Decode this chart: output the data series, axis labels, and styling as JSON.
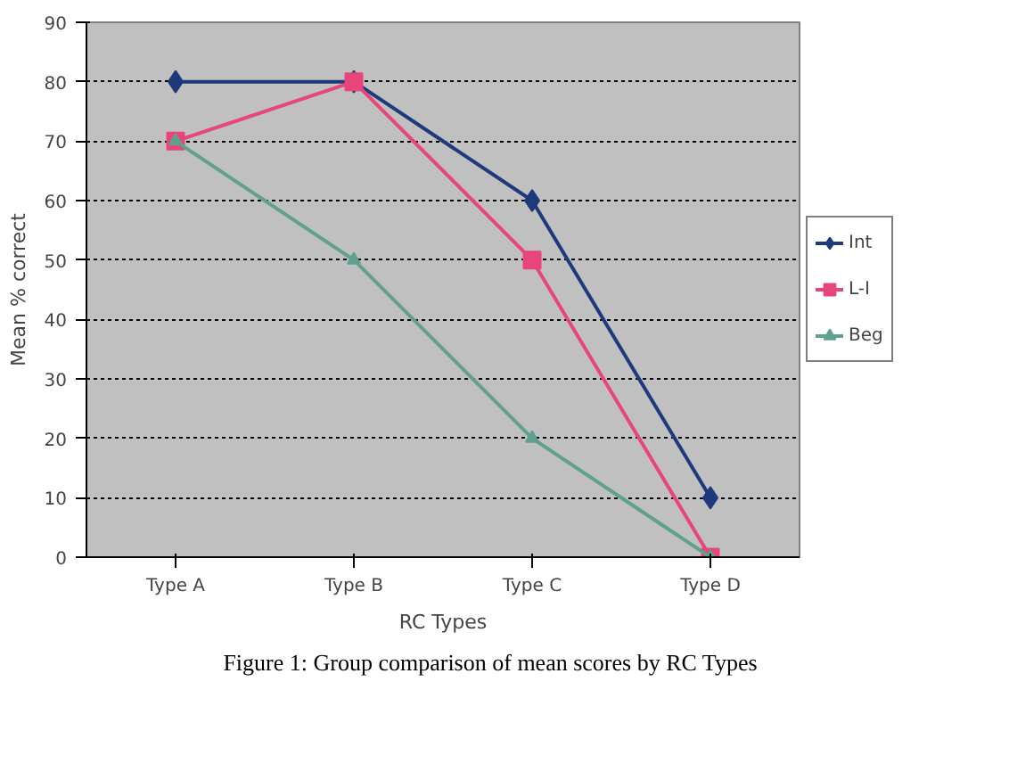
{
  "chart_data": {
    "type": "line",
    "xlabel": "RC Types",
    "ylabel": "Mean % correct",
    "categories": [
      "Type A",
      "Type B",
      "Type C",
      "Type D"
    ],
    "series": [
      {
        "name": "Int",
        "color": "#1f3a7a",
        "values": [
          80,
          80,
          60,
          10
        ],
        "marker": "diamond"
      },
      {
        "name": "L-I",
        "color": "#e8457a",
        "values": [
          70,
          80,
          50,
          0
        ],
        "marker": "square"
      },
      {
        "name": "Beg",
        "color": "#5fa090",
        "values": [
          70,
          50,
          20,
          0
        ],
        "marker": "triangle"
      }
    ],
    "ylim": [
      0,
      90
    ],
    "yticks": [
      0,
      10,
      20,
      30,
      40,
      50,
      60,
      70,
      80,
      90
    ],
    "grid": "y",
    "legend": "right",
    "annotations": [
      "Figure 1: Group comparison of mean scores by RC Types"
    ]
  }
}
